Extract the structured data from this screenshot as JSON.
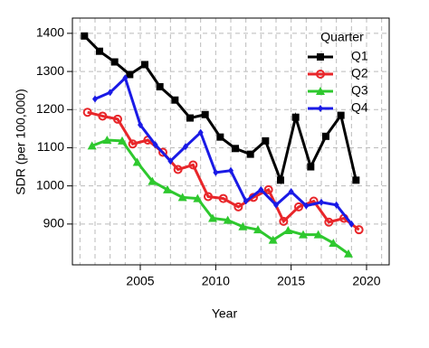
{
  "chart_data": {
    "type": "line",
    "xlabel": "Year",
    "ylabel": "SDR (per 100,000)",
    "xlim": [
      2000.5,
      2021.5
    ],
    "ylim": [
      793,
      1440
    ],
    "xticks": [
      2005,
      2010,
      2015,
      2020
    ],
    "yticks": [
      900,
      1000,
      1100,
      1200,
      1300,
      1400
    ],
    "grid": true,
    "legend": {
      "title": "Quarter",
      "position": "top-right"
    },
    "series": [
      {
        "name": "Q1",
        "color": "#000000",
        "marker": "square",
        "x": [
          2001.3,
          2002.3,
          2003.3,
          2004.3,
          2005.3,
          2006.3,
          2007.3,
          2008.3,
          2009.3,
          2010.3,
          2011.3,
          2012.3,
          2013.3,
          2014.3,
          2015.3,
          2016.3,
          2017.3,
          2018.3,
          2019.3
        ],
        "values": [
          1393,
          1353,
          1325,
          1292,
          1318,
          1260,
          1225,
          1178,
          1187,
          1128,
          1098,
          1083,
          1118,
          1015,
          1180,
          1050,
          1130,
          1185,
          1015
        ]
      },
      {
        "name": "Q2",
        "color": "#e8262a",
        "marker": "circle",
        "x": [
          2001.5,
          2002.5,
          2003.5,
          2004.5,
          2005.5,
          2006.5,
          2007.5,
          2008.5,
          2009.5,
          2010.5,
          2011.5,
          2012.5,
          2013.5,
          2014.5,
          2015.5,
          2016.5,
          2017.5,
          2018.5,
          2019.5
        ],
        "values": [
          1193,
          1183,
          1175,
          1110,
          1120,
          1088,
          1043,
          1055,
          972,
          967,
          945,
          970,
          990,
          907,
          945,
          960,
          905,
          915,
          885
        ]
      },
      {
        "name": "Q3",
        "color": "#2ec82e",
        "marker": "triangle",
        "x": [
          2001.8,
          2002.8,
          2003.8,
          2004.8,
          2005.8,
          2006.8,
          2007.8,
          2008.8,
          2009.8,
          2010.8,
          2011.8,
          2012.8,
          2013.8,
          2014.8,
          2015.8,
          2016.8,
          2017.8,
          2018.8
        ],
        "values": [
          1105,
          1120,
          1118,
          1062,
          1012,
          990,
          970,
          967,
          915,
          910,
          893,
          885,
          858,
          883,
          872,
          872,
          850,
          822
        ]
      },
      {
        "name": "Q4",
        "color": "#1a1ae6",
        "marker": "diamond",
        "x": [
          2002.0,
          2003.0,
          2004.0,
          2005.0,
          2006.0,
          2007.0,
          2008.0,
          2009.0,
          2010.0,
          2011.0,
          2012.0,
          2013.0,
          2014.0,
          2015.0,
          2016.0,
          2017.0,
          2018.0,
          2019.0
        ],
        "values": [
          1228,
          1245,
          1283,
          1160,
          1108,
          1065,
          1103,
          1140,
          1035,
          1040,
          960,
          990,
          950,
          985,
          948,
          957,
          950,
          900
        ]
      }
    ]
  }
}
